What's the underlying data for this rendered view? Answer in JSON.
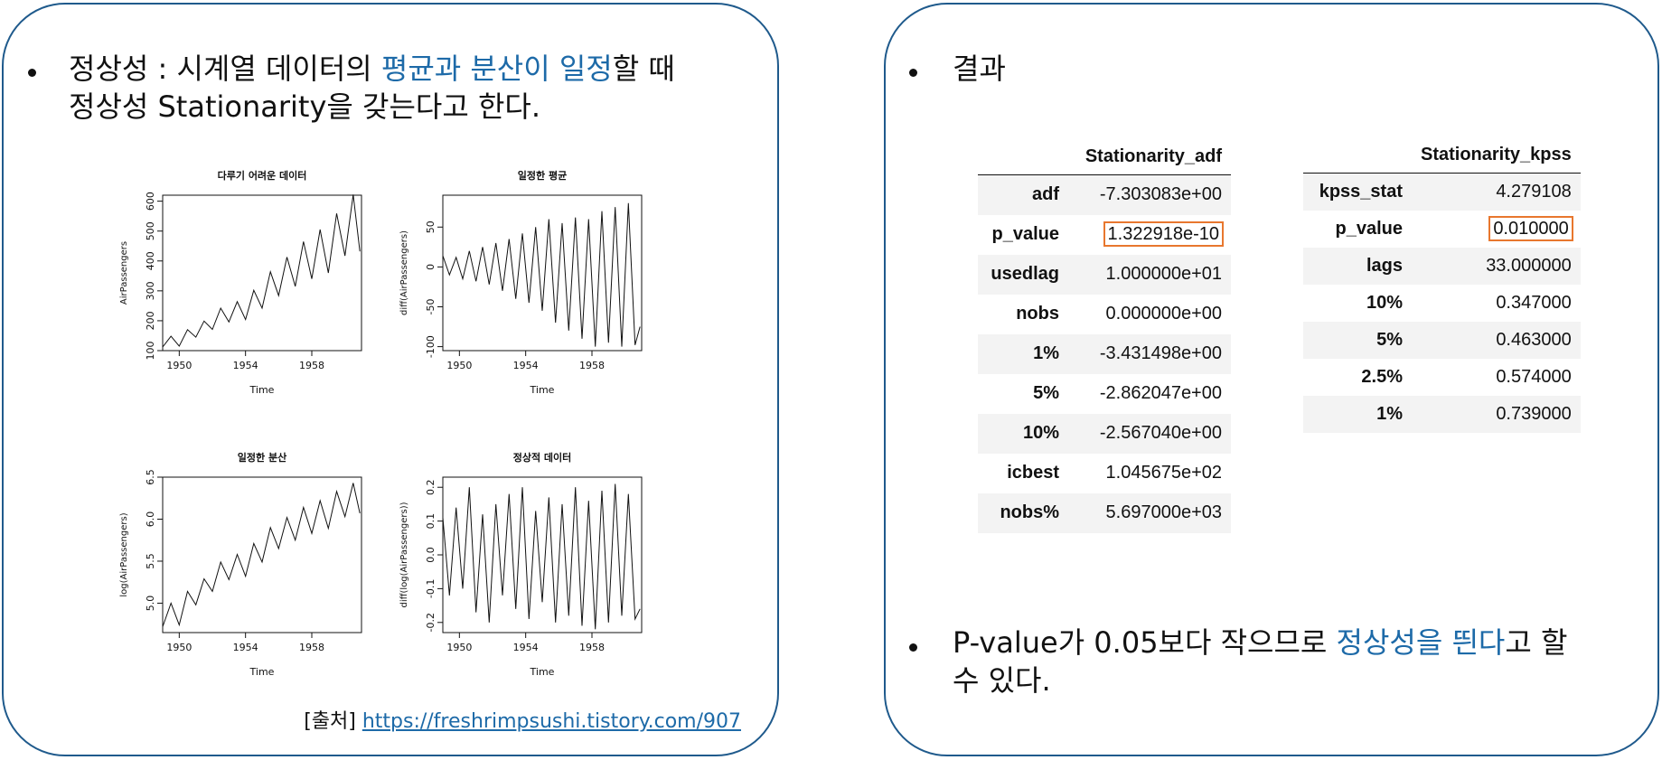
{
  "left": {
    "bullet_line1_a": "정상성 : 시계열 데이터의 ",
    "bullet_line1_b": "평균과 분산이 일정",
    "bullet_line1_c": "할 때",
    "bullet_line2": "정상성 Stationarity을 갖는다고 한다.",
    "source_prefix": "[출처] ",
    "source_link": "https://freshrimpsushi.tistory.com/907"
  },
  "right": {
    "result_label": "결과",
    "conclusion_a": "P-value가 0.05보다 작으므로 ",
    "conclusion_b": "정상성을 띈다",
    "conclusion_c": "고 할",
    "conclusion_line2": "수 있다."
  },
  "adf_table": {
    "header": "Stationarity_adf",
    "rows": [
      {
        "label": "adf",
        "value": "-7.303083e+00"
      },
      {
        "label": "p_value",
        "value": "1.322918e-10"
      },
      {
        "label": "usedlag",
        "value": "1.000000e+01"
      },
      {
        "label": "nobs",
        "value": "0.000000e+00"
      },
      {
        "label": "1%",
        "value": "-3.431498e+00"
      },
      {
        "label": "5%",
        "value": "-2.862047e+00"
      },
      {
        "label": "10%",
        "value": "-2.567040e+00"
      },
      {
        "label": "icbest",
        "value": "1.045675e+02"
      },
      {
        "label": "nobs%",
        "value": "5.697000e+03"
      }
    ]
  },
  "kpss_table": {
    "header": "Stationarity_kpss",
    "rows": [
      {
        "label": "kpss_stat",
        "value": "4.279108"
      },
      {
        "label": "p_value",
        "value": "0.010000"
      },
      {
        "label": "lags",
        "value": "33.000000"
      },
      {
        "label": "10%",
        "value": "0.347000"
      },
      {
        "label": "5%",
        "value": "0.463000"
      },
      {
        "label": "2.5%",
        "value": "0.574000"
      },
      {
        "label": "1%",
        "value": "0.739000"
      }
    ]
  },
  "chart_data": [
    {
      "type": "line",
      "title": "다루기 어려운 데이터",
      "xlabel": "Time",
      "ylabel": "AirPassengers",
      "x_ticks": [
        "1950",
        "1954",
        "1958"
      ],
      "y_ticks": [
        "100",
        "200",
        "300",
        "400",
        "500",
        "600"
      ],
      "xlim": [
        1949,
        1961
      ],
      "ylim": [
        100,
        620
      ],
      "x": [
        1949.0,
        1949.5,
        1950.0,
        1950.5,
        1951.0,
        1951.5,
        1952.0,
        1952.5,
        1953.0,
        1953.5,
        1954.0,
        1954.5,
        1955.0,
        1955.5,
        1956.0,
        1956.5,
        1957.0,
        1957.5,
        1958.0,
        1958.5,
        1959.0,
        1959.5,
        1960.0,
        1960.5,
        1960.9
      ],
      "y": [
        112,
        148,
        115,
        170,
        145,
        199,
        171,
        242,
        196,
        264,
        204,
        302,
        242,
        364,
        284,
        413,
        315,
        465,
        340,
        505,
        360,
        559,
        417,
        622,
        432
      ]
    },
    {
      "type": "line",
      "title": "일정한 평균",
      "xlabel": "Time",
      "ylabel": "diff(AirPassengers)",
      "x_ticks": [
        "1950",
        "1954",
        "1958"
      ],
      "y_ticks": [
        "-100",
        "-50",
        "0",
        "50"
      ],
      "xlim": [
        1949,
        1961
      ],
      "ylim": [
        -105,
        90
      ],
      "x": [
        1949.0,
        1949.4,
        1949.8,
        1950.2,
        1950.6,
        1951.0,
        1951.4,
        1951.8,
        1952.2,
        1952.6,
        1953.0,
        1953.4,
        1953.8,
        1954.2,
        1954.6,
        1955.0,
        1955.4,
        1955.8,
        1956.2,
        1956.6,
        1957.0,
        1957.4,
        1957.8,
        1958.2,
        1958.6,
        1959.0,
        1959.4,
        1959.8,
        1960.2,
        1960.6,
        1960.9
      ],
      "y": [
        14,
        -10,
        12,
        -15,
        20,
        -18,
        25,
        -22,
        30,
        -30,
        35,
        -40,
        42,
        -45,
        50,
        -55,
        60,
        -70,
        55,
        -80,
        62,
        -90,
        60,
        -100,
        70,
        -95,
        75,
        -100,
        80,
        -98,
        -75
      ]
    },
    {
      "type": "line",
      "title": "일정한 분산",
      "xlabel": "Time",
      "ylabel": "log(AirPassengers)",
      "x_ticks": [
        "1950",
        "1954",
        "1958"
      ],
      "y_ticks": [
        "5.0",
        "5.5",
        "6.0",
        "6.5"
      ],
      "xlim": [
        1949,
        1961
      ],
      "ylim": [
        4.65,
        6.5
      ],
      "x": [
        1949.0,
        1949.5,
        1950.0,
        1950.5,
        1951.0,
        1951.5,
        1952.0,
        1952.5,
        1953.0,
        1953.5,
        1954.0,
        1954.5,
        1955.0,
        1955.5,
        1956.0,
        1956.5,
        1957.0,
        1957.5,
        1958.0,
        1958.5,
        1959.0,
        1959.5,
        1960.0,
        1960.5,
        1960.9
      ],
      "y": [
        4.72,
        5.0,
        4.74,
        5.14,
        4.98,
        5.29,
        5.14,
        5.49,
        5.28,
        5.58,
        5.32,
        5.71,
        5.49,
        5.9,
        5.65,
        6.02,
        5.75,
        6.14,
        5.83,
        6.22,
        5.89,
        6.33,
        6.03,
        6.43,
        6.07
      ]
    },
    {
      "type": "line",
      "title": "정상적 데이터",
      "xlabel": "Time",
      "ylabel": "diff(log(AirPassengers))",
      "x_ticks": [
        "1950",
        "1954",
        "1958"
      ],
      "y_ticks": [
        "-0.2",
        "-0.1",
        "0.0",
        "0.1",
        "0.2"
      ],
      "xlim": [
        1949,
        1961
      ],
      "ylim": [
        -0.23,
        0.23
      ],
      "x": [
        1949.0,
        1949.4,
        1949.8,
        1950.2,
        1950.6,
        1951.0,
        1951.4,
        1951.8,
        1952.2,
        1952.6,
        1953.0,
        1953.4,
        1953.8,
        1954.2,
        1954.6,
        1955.0,
        1955.4,
        1955.8,
        1956.2,
        1956.6,
        1957.0,
        1957.4,
        1957.8,
        1958.2,
        1958.6,
        1959.0,
        1959.4,
        1959.8,
        1960.2,
        1960.6,
        1960.9
      ],
      "y": [
        0.11,
        -0.12,
        0.14,
        -0.1,
        0.2,
        -0.17,
        0.12,
        -0.2,
        0.15,
        -0.12,
        0.18,
        -0.16,
        0.2,
        -0.19,
        0.13,
        -0.14,
        0.17,
        -0.2,
        0.15,
        -0.18,
        0.2,
        -0.21,
        0.16,
        -0.22,
        0.19,
        -0.2,
        0.21,
        -0.18,
        0.18,
        -0.19,
        -0.16
      ]
    }
  ]
}
